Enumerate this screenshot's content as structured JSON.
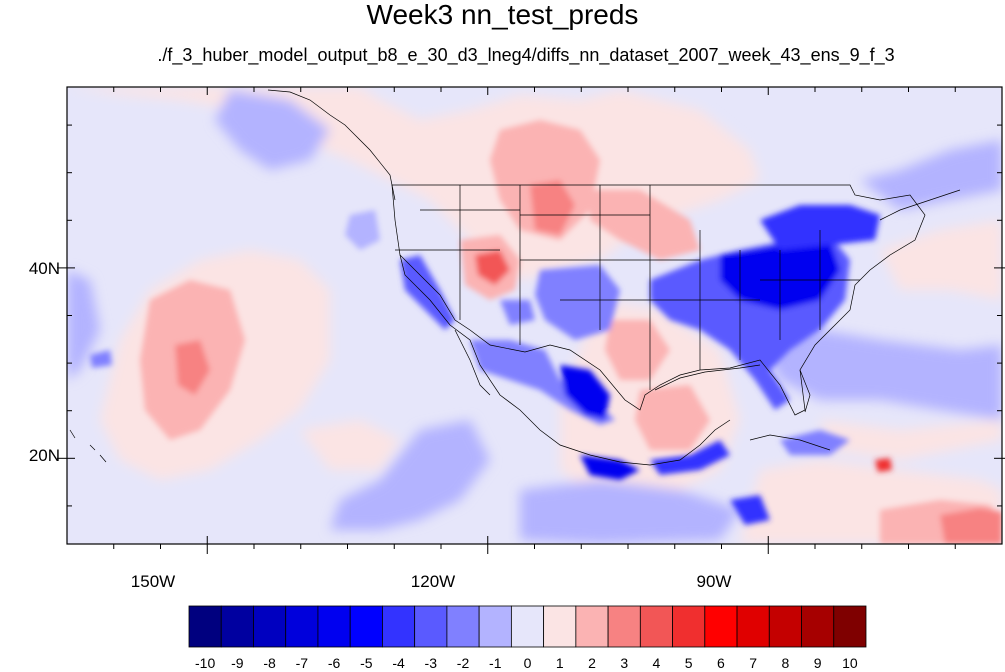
{
  "title": "Week3 nn_test_preds",
  "subtitle": "./f_3_huber_model_output_b8_e_30_d3_lneg4/diffs_nn_dataset_2007_week_43_ens_9_f_3",
  "map": {
    "projection": "cylindrical-equidistant",
    "lon_range": [
      -165,
      -65
    ],
    "lat_range": [
      11,
      59
    ],
    "lon_ticks": [
      {
        "value": -150,
        "label": "150W"
      },
      {
        "value": -120,
        "label": "120W"
      },
      {
        "value": -90,
        "label": "90W"
      }
    ],
    "lat_ticks": [
      {
        "value": 40,
        "label": "40N"
      },
      {
        "value": 20,
        "label": "20N"
      }
    ],
    "minor_lon_ticks": [
      -160,
      -155,
      -145,
      -140,
      -135,
      -130,
      -125,
      -115,
      -110,
      -105,
      -100,
      -95,
      -85,
      -80,
      -75,
      -70
    ],
    "minor_lat_ticks": [
      15,
      25,
      30,
      35,
      45,
      50,
      55
    ],
    "features": [
      "coastlines",
      "us-state-boundaries"
    ]
  },
  "chart_data": {
    "type": "heatmap",
    "title": "Week3 nn_test_preds",
    "subtitle": "./f_3_huber_model_output_b8_e_30_d3_lneg4/diffs_nn_dataset_2007_week_43_ens_9_f_3",
    "contour_levels": [
      -10,
      -9,
      -8,
      -7,
      -6,
      -5,
      -4,
      -3,
      -2,
      -1,
      0,
      1,
      2,
      3,
      4,
      5,
      6,
      7,
      8,
      9,
      10
    ],
    "colorbar_colors": [
      "#00007f",
      "#0000a0",
      "#0000c0",
      "#0000dc",
      "#0000f0",
      "#0000ff",
      "#3333ff",
      "#5a5aff",
      "#8080ff",
      "#b3b3ff",
      "#e6e6fa",
      "#fbe4e4",
      "#fbb3b3",
      "#f78282",
      "#f25656",
      "#f02f2f",
      "#ff0000",
      "#e00000",
      "#c40000",
      "#a60000",
      "#7f0000"
    ]
  }
}
